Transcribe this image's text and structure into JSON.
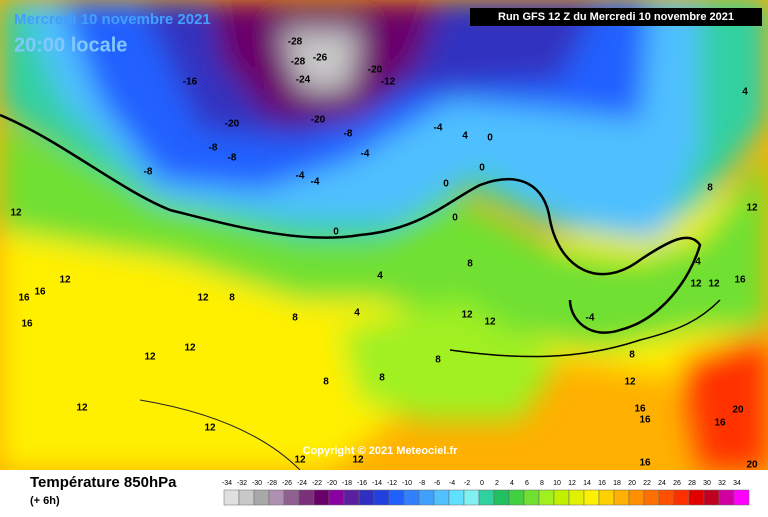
{
  "header": {
    "date": "Mercredi 10 novembre 2021",
    "time": "20:00 locale",
    "run": "Run GFS 12 Z du Mercredi 10 novembre 2021"
  },
  "map": {
    "labels": [
      "-16",
      "-20",
      "-8",
      "-8",
      "-8",
      "-28",
      "-26",
      "-28",
      "-24",
      "-20",
      "-8",
      "-20",
      "-12",
      "-4",
      "-4",
      "-4",
      "-4",
      "4",
      "0",
      "0",
      "0",
      "0",
      "0",
      "4",
      "4",
      "8",
      "8",
      "12",
      "12",
      "8",
      "8",
      "8",
      "12",
      "12",
      "12",
      "12",
      "12",
      "12",
      "16",
      "16",
      "16",
      "12",
      "8",
      "4",
      "8",
      "12",
      "4",
      "12",
      "12",
      "16",
      "-4",
      "8",
      "12",
      "16",
      "16",
      "16",
      "20",
      "20",
      "16",
      "12",
      "12"
    ]
  },
  "copyright": "Copyright © 2021 Meteociel.fr",
  "legend": {
    "title": "Température 850hPa",
    "step": "(+ 6h)",
    "values": [
      -34,
      -32,
      -30,
      -28,
      -26,
      -24,
      -22,
      -20,
      -18,
      -16,
      -14,
      -12,
      -10,
      -8,
      -6,
      -4,
      -2,
      0,
      2,
      4,
      6,
      8,
      10,
      12,
      14,
      16,
      18,
      20,
      22,
      24,
      26,
      28,
      30,
      32,
      34
    ],
    "colors": [
      "#e0e0e0",
      "#c8c8c8",
      "#a8a8a8",
      "#b090b0",
      "#906090",
      "#7a307a",
      "#6a006a",
      "#8a00a0",
      "#5a1fa0",
      "#3030c0",
      "#2040e0",
      "#2060ff",
      "#3080ff",
      "#40a0ff",
      "#50c0ff",
      "#60e0ff",
      "#80f0f0",
      "#30d0a0",
      "#20c060",
      "#40d040",
      "#70e030",
      "#a0f020",
      "#c0f000",
      "#e0f000",
      "#fff000",
      "#ffd000",
      "#ffb000",
      "#ff9000",
      "#ff7000",
      "#ff5000",
      "#ff3000",
      "#e00000",
      "#c00020",
      "#d000a0",
      "#ff00ff"
    ]
  }
}
